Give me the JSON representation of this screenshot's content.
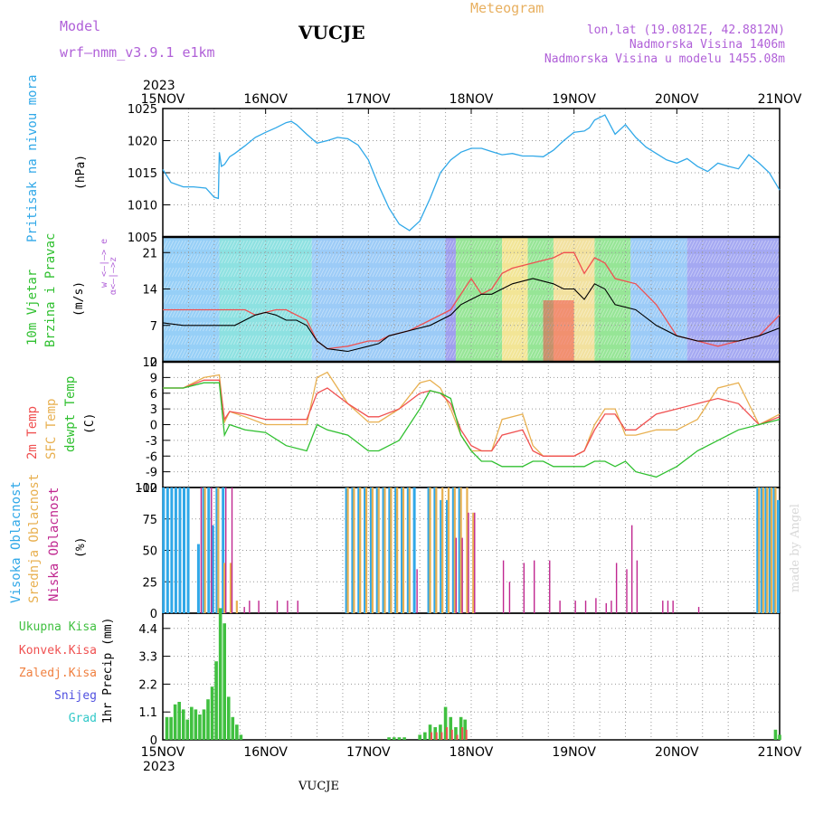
{
  "header": {
    "model_label": "Model",
    "model_name": "wrf–nmm_v3.9.1  e1km",
    "station": "VUCJE",
    "meteogram_label": "Meteogram",
    "lonlat": "lon,lat (19.0812E, 42.8812N)",
    "elevation": "Nadmorska Visina 1406m",
    "model_elevation": "Nadmorska Visina u modelu 1455.08m"
  },
  "footer": {
    "station": "VUCJE",
    "credit": "made by Angel"
  },
  "axis": {
    "year": "2023",
    "dates": [
      "15NOV",
      "16NOV",
      "17NOV",
      "18NOV",
      "19NOV",
      "20NOV",
      "21NOV"
    ]
  },
  "panels": {
    "pressure": {
      "label": "Pritisak na nivou mora",
      "unit": "(hPa)"
    },
    "wind": {
      "label1": "10m Vjetar",
      "label2": "Brzina i Pravac",
      "unit": "(m/s)",
      "compass": "w <–|–> e",
      "compass2": "α<–|–>z"
    },
    "temp": {
      "l1": "2m Temp",
      "l2": "SFC Temp",
      "l3": "dewpt Temp",
      "unit": "(C)"
    },
    "cloud": {
      "l1": "Visoka Oblacnost",
      "l2": "Srednja Oblacnost",
      "l3": "Niska Oblacnost",
      "unit": "(%)"
    },
    "precip": {
      "labels": [
        "Ukupna Kisa",
        "Konvek.Kisa",
        "Zaledj.Kisa",
        "Snijeg",
        "Grad"
      ],
      "unit": "1hr Precip (mm)"
    }
  },
  "colors": {
    "pressure": "#30a8e8",
    "purple": "#b060d8",
    "orange": "#e8b060",
    "t2m": "#f05050",
    "tsfc": "#e8b050",
    "dew": "#30c030",
    "high": "#30a8e8",
    "mid": "#e8b050",
    "low": "#c02890",
    "rain": "#40c040",
    "conv": "#f05050",
    "frz": "#f08040",
    "snow": "#5050e0",
    "hail": "#30c8c8"
  },
  "chart_data": [
    {
      "type": "line",
      "title": "Pritisak na nivou mora",
      "ylabel": "(hPa)",
      "ylim": [
        1005,
        1025
      ],
      "yticks": [
        1005,
        1010,
        1015,
        1020,
        1025
      ],
      "x_days_from_15nov": [
        0,
        0.08,
        0.2,
        0.3,
        0.42,
        0.5,
        0.54,
        0.55,
        0.57,
        0.6,
        0.65,
        0.7,
        0.8,
        0.9,
        1,
        1.1,
        1.2,
        1.25,
        1.3,
        1.4,
        1.5,
        1.6,
        1.7,
        1.8,
        1.9,
        2.0,
        2.1,
        2.2,
        2.3,
        2.4,
        2.5,
        2.6,
        2.7,
        2.8,
        2.9,
        3.0,
        3.1,
        3.2,
        3.3,
        3.4,
        3.5,
        3.6,
        3.7,
        3.8,
        3.9,
        4.0,
        4.1,
        4.15,
        4.2,
        4.3,
        4.4,
        4.5,
        4.6,
        4.7,
        4.8,
        4.9,
        5.0,
        5.1,
        5.2,
        5.3,
        5.4,
        5.5,
        5.6,
        5.7,
        5.8,
        5.9,
        6.0
      ],
      "series": [
        {
          "name": "Pritisak",
          "values": [
            1015.5,
            1013.5,
            1012.8,
            1012.8,
            1012.6,
            1011.2,
            1011.0,
            1018.2,
            1016.0,
            1016.3,
            1017.5,
            1018.0,
            1019.2,
            1020.5,
            1021.3,
            1022.0,
            1022.8,
            1023.0,
            1022.5,
            1021.0,
            1019.6,
            1020.0,
            1020.5,
            1020.3,
            1019.3,
            1017.0,
            1013.0,
            1009.5,
            1007.0,
            1006.0,
            1007.5,
            1011.0,
            1015.0,
            1017.0,
            1018.2,
            1018.8,
            1018.8,
            1018.3,
            1017.8,
            1018.0,
            1017.6,
            1017.6,
            1017.5,
            1018.5,
            1020.0,
            1021.3,
            1021.5,
            1022.0,
            1023.2,
            1024.0,
            1021.0,
            1022.5,
            1020.5,
            1019.0,
            1018.0,
            1017.0,
            1016.5,
            1017.2,
            1016.0,
            1015.2,
            1016.5,
            1016.0,
            1015.6,
            1017.8,
            1016.5,
            1015.0,
            1012.3
          ]
        }
      ]
    },
    {
      "type": "line",
      "title": "10m Vjetar Brzina i Pravac",
      "ylabel": "(m/s)",
      "ylim": [
        0,
        24
      ],
      "yticks": [
        0,
        7,
        14,
        21
      ],
      "x_days_from_15nov": [
        0,
        0.2,
        0.4,
        0.55,
        0.7,
        0.8,
        0.9,
        1.0,
        1.1,
        1.2,
        1.3,
        1.4,
        1.5,
        1.6,
        1.8,
        2.0,
        2.1,
        2.2,
        2.4,
        2.6,
        2.8,
        2.9,
        3.0,
        3.1,
        3.2,
        3.3,
        3.4,
        3.6,
        3.8,
        3.9,
        4.0,
        4.1,
        4.2,
        4.3,
        4.4,
        4.6,
        4.8,
        5.0,
        5.2,
        5.4,
        5.6,
        5.8,
        6.0
      ],
      "series": [
        {
          "name": "gust",
          "values": [
            10,
            10,
            10,
            10,
            10,
            10,
            9,
            9.5,
            10,
            10,
            9,
            8,
            4,
            2.5,
            3,
            4,
            4,
            5,
            6,
            8,
            10,
            13,
            16,
            13,
            14,
            17,
            18,
            19,
            20,
            21,
            21,
            17,
            20,
            19,
            16,
            15,
            11,
            5,
            4,
            3,
            4,
            5,
            9
          ]
        },
        {
          "name": "speed",
          "values": [
            7.5,
            7,
            7,
            7,
            7,
            8,
            9,
            9.5,
            9,
            8,
            8,
            7,
            4,
            2.5,
            2,
            3,
            3.5,
            5,
            6,
            7,
            9,
            11,
            12,
            13,
            13,
            14,
            15,
            16,
            15,
            14,
            14,
            12,
            15,
            14,
            11,
            10,
            7,
            5,
            4,
            4,
            4,
            5,
            6.5
          ]
        }
      ]
    },
    {
      "type": "line",
      "title": "2m Temp / SFC Temp / dewpt Temp",
      "ylabel": "(C)",
      "ylim": [
        -12,
        12
      ],
      "yticks": [
        -12,
        -9,
        -6,
        -3,
        0,
        3,
        6,
        9,
        12
      ],
      "x_days_from_15nov": [
        0,
        0.2,
        0.4,
        0.55,
        0.6,
        0.65,
        0.8,
        1.0,
        1.2,
        1.4,
        1.5,
        1.6,
        1.8,
        2.0,
        2.1,
        2.3,
        2.5,
        2.6,
        2.7,
        2.8,
        2.9,
        3.0,
        3.1,
        3.2,
        3.3,
        3.5,
        3.6,
        3.7,
        3.8,
        4.0,
        4.1,
        4.2,
        4.3,
        4.4,
        4.5,
        4.6,
        4.8,
        5.0,
        5.2,
        5.4,
        5.6,
        5.8,
        6.0
      ],
      "series": [
        {
          "name": "2m Temp",
          "values": [
            7,
            7,
            8.5,
            8.5,
            1,
            2.5,
            2,
            1,
            1,
            1,
            6,
            7,
            4,
            1.5,
            1.5,
            3,
            6,
            6.5,
            6,
            4,
            -1,
            -4,
            -5,
            -5,
            -2,
            -1,
            -5,
            -6,
            -6,
            -6,
            -5,
            -1,
            2,
            2,
            -1,
            -1,
            2,
            3,
            4,
            5,
            4,
            0,
            1.5
          ]
        },
        {
          "name": "SFC Temp",
          "values": [
            7,
            7,
            9,
            9.5,
            0.5,
            2.5,
            1.5,
            0,
            0,
            0,
            9,
            10,
            4,
            0.5,
            0.5,
            3,
            8,
            8.5,
            7,
            3,
            -2,
            -5,
            -5,
            -5,
            1,
            2,
            -4,
            -6,
            -6,
            -6,
            -5,
            0,
            3,
            3,
            -2,
            -2,
            -1,
            -1,
            1,
            7,
            8,
            0,
            2
          ]
        },
        {
          "name": "dewpt Temp",
          "values": [
            7,
            7,
            8,
            8,
            -2,
            0,
            -1,
            -1.5,
            -4,
            -5,
            0,
            -1,
            -2,
            -5,
            -5,
            -3,
            3,
            6.5,
            6,
            5,
            -2,
            -5,
            -7,
            -7,
            -8,
            -8,
            -7,
            -7,
            -8,
            -8,
            -8,
            -7,
            -7,
            -8,
            -7,
            -9,
            -10,
            -8,
            -5,
            -3,
            -1,
            0,
            1
          ]
        }
      ]
    },
    {
      "type": "bar",
      "title": "Visoka / Srednja / Niska Oblacnost",
      "ylabel": "(%)",
      "ylim": [
        0,
        100
      ],
      "yticks": [
        0,
        25,
        50,
        75,
        100
      ],
      "bars_x_days_from_15nov": [
        0.02,
        0.06,
        0.1,
        0.14,
        0.18,
        0.22,
        0.26,
        0.36,
        0.41,
        0.46,
        0.5,
        0.54,
        0.6,
        0.66,
        0.72,
        0.78,
        0.83,
        0.92,
        1.1,
        1.2,
        1.3,
        1.35,
        1.8,
        1.86,
        1.92,
        1.98,
        2.04,
        2.1,
        2.16,
        2.22,
        2.28,
        2.34,
        2.4,
        2.46,
        2.6,
        2.66,
        2.72,
        2.78,
        2.84,
        2.9,
        2.96,
        3.02,
        3.3,
        3.36,
        3.5,
        3.6,
        3.75,
        3.85,
        4.0,
        4.1,
        4.2,
        4.3,
        4.35,
        4.4,
        4.5,
        4.55,
        4.6,
        4.7,
        4.85,
        4.9,
        4.95,
        5.0,
        5.1,
        5.2,
        5.3,
        5.4,
        5.5,
        5.6,
        5.7,
        5.8,
        5.84,
        5.88,
        5.92,
        5.96,
        6.0
      ],
      "series": [
        {
          "name": "Visoka Oblacnost",
          "values": [
            100,
            100,
            100,
            100,
            100,
            100,
            100,
            55,
            100,
            100,
            70,
            100,
            100,
            0,
            0,
            0,
            0,
            0,
            0,
            0,
            0,
            0,
            100,
            100,
            100,
            100,
            100,
            100,
            100,
            100,
            100,
            100,
            100,
            100,
            100,
            100,
            90,
            90,
            100,
            100,
            0,
            0,
            0,
            0,
            0,
            0,
            0,
            0,
            0,
            0,
            0,
            0,
            0,
            0,
            0,
            0,
            0,
            0,
            0,
            0,
            0,
            0,
            0,
            0,
            0,
            0,
            0,
            0,
            0,
            100,
            100,
            100,
            100,
            100,
            90
          ]
        },
        {
          "name": "Srednja Oblacnost",
          "values": [
            0,
            0,
            0,
            0,
            0,
            0,
            0,
            0,
            100,
            0,
            0,
            100,
            40,
            40,
            10,
            0,
            0,
            0,
            0,
            0,
            0,
            0,
            100,
            100,
            100,
            100,
            100,
            100,
            100,
            100,
            100,
            100,
            100,
            0,
            100,
            100,
            100,
            100,
            100,
            100,
            100,
            80,
            0,
            0,
            0,
            0,
            0,
            0,
            0,
            0,
            0,
            0,
            0,
            0,
            0,
            0,
            0,
            0,
            0,
            0,
            0,
            0,
            0,
            0,
            0,
            0,
            0,
            0,
            0,
            100,
            100,
            100,
            100,
            100,
            0
          ]
        },
        {
          "name": "Niska Oblacnost",
          "values": [
            0,
            0,
            0,
            0,
            0,
            0,
            0,
            100,
            0,
            100,
            0,
            0,
            100,
            100,
            0,
            5,
            10,
            10,
            10,
            10,
            10,
            0,
            0,
            0,
            0,
            0,
            0,
            0,
            0,
            0,
            0,
            0,
            0,
            35,
            0,
            0,
            0,
            0,
            60,
            60,
            80,
            80,
            42,
            25,
            40,
            42,
            42,
            10,
            10,
            10,
            12,
            8,
            10,
            40,
            35,
            70,
            42,
            0,
            10,
            10,
            10,
            0,
            0,
            5,
            0,
            0,
            0,
            0,
            0,
            0,
            0,
            0,
            0,
            0,
            0
          ]
        }
      ]
    },
    {
      "type": "bar",
      "title": "Ukupna Kisa / Konvek.Kisa / Zaledj.Kisa / Snijeg / Grad",
      "ylabel": "1hr Precip (mm)",
      "ylim": [
        0,
        5
      ],
      "yticks": [
        0,
        1.1,
        2.2,
        3.3,
        4.4
      ],
      "bars_x_days_from_15nov": [
        0.04,
        0.08,
        0.12,
        0.16,
        0.2,
        0.24,
        0.28,
        0.32,
        0.36,
        0.4,
        0.44,
        0.48,
        0.52,
        0.56,
        0.6,
        0.64,
        0.68,
        0.72,
        0.76,
        2.2,
        2.25,
        2.3,
        2.35,
        2.5,
        2.55,
        2.6,
        2.65,
        2.7,
        2.75,
        2.8,
        2.85,
        2.9,
        2.94,
        5.96,
        6.0
      ],
      "series": [
        {
          "name": "Ukupna Kisa",
          "values": [
            0.9,
            0.9,
            1.4,
            1.5,
            1.2,
            0.8,
            1.3,
            1.2,
            1.0,
            1.2,
            1.6,
            2.1,
            3.1,
            5.2,
            4.6,
            1.7,
            0.9,
            0.6,
            0.2,
            0.1,
            0.1,
            0.1,
            0.1,
            0.2,
            0.3,
            0.6,
            0.5,
            0.6,
            1.3,
            0.9,
            0.5,
            0.9,
            0.8,
            0.4,
            0.2
          ]
        },
        {
          "name": "Konvek.Kisa",
          "values": [
            0,
            0,
            0,
            0,
            0,
            0,
            0,
            0,
            0,
            0,
            0,
            0,
            0,
            0,
            0,
            0,
            0,
            0,
            0,
            0,
            0,
            0,
            0,
            0,
            0,
            0.3,
            0.3,
            0.3,
            0.5,
            0.4,
            0.2,
            0.5,
            0.4,
            0,
            0
          ]
        }
      ]
    }
  ]
}
